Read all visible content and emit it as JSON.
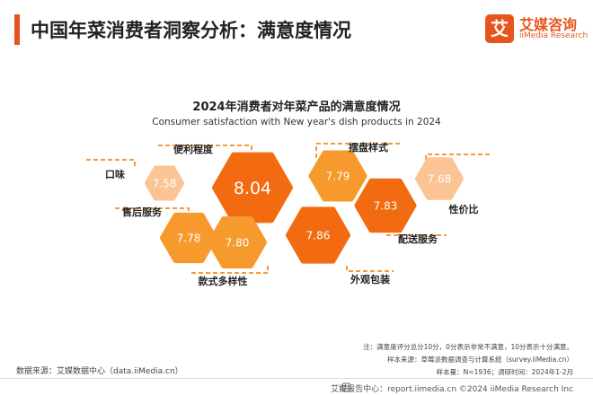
{
  "header": {
    "title": "中国年菜消费者洞察分析：满意度情况",
    "logo_name": "艾媒咨询",
    "logo_sub": "iiMedia Research",
    "logo_glyph": "艾"
  },
  "colors": {
    "accent": "#e8541e",
    "hex_dark": "#f26b10",
    "hex_mid": "#f79a2e",
    "hex_light": "#fbc494",
    "label_line": "#f59a3c"
  },
  "chart_data": {
    "type": "bubble-hexagon",
    "title": "2024年消费者对年菜产品的满意度情况",
    "subtitle": "Consumer satisfaction with New year's dish products in 2024",
    "items": [
      {
        "label": "口味",
        "value": 7.58
      },
      {
        "label": "便利程度",
        "value": 8.04
      },
      {
        "label": "售后服务",
        "value": 7.78
      },
      {
        "label": "款式多样性",
        "value": 7.8
      },
      {
        "label": "外观包装",
        "value": 7.86
      },
      {
        "label": "摆盘样式",
        "value": 7.79
      },
      {
        "label": "配送服务",
        "value": 7.83
      },
      {
        "label": "性价比",
        "value": 7.68
      }
    ]
  },
  "notes": {
    "line1": "注：满意度评分总分10分，0分表示非常不满意，10分表示十分满意。",
    "line2": "样本来源：草莓派数据调查与计算系统（survey.iiMedia.cn）",
    "line3": "样本量：N=1936；调研时间：2024年1-2月"
  },
  "source": "数据来源：艾媒数据中心（data.iiMedia.cn）",
  "footer": {
    "text": "艾媒报告中心：report.iimedia.cn    ©2024  iiMedia Research  Inc"
  }
}
